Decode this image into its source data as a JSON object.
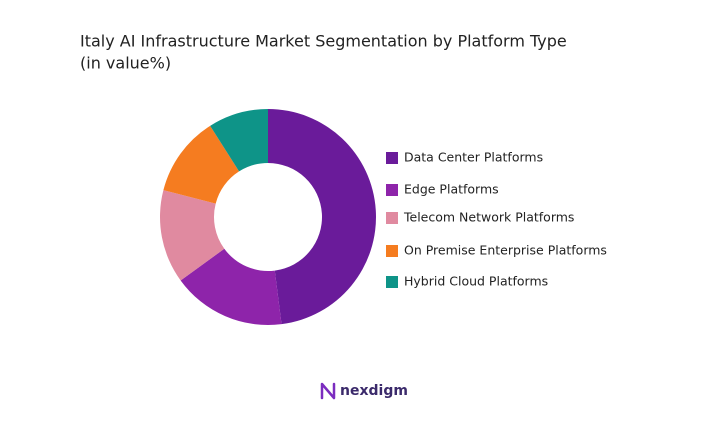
{
  "chart_data": {
    "type": "donut",
    "title": "Italy AI Infrastructure Market Segmentation by Platform Type",
    "subtitle": "(in value%)",
    "categories": [
      "Data Center Platforms",
      "Edge Platforms",
      "Telecom Network Platforms",
      "On Premise Enterprise Platforms",
      "Hybrid Cloud Platforms"
    ],
    "values": [
      48,
      17,
      14,
      12,
      9
    ],
    "colors": [
      "#6a1b9a",
      "#8e24aa",
      "#e08aa0",
      "#f57c20",
      "#0e9488"
    ],
    "legend": "right"
  },
  "brand": "nexdigm"
}
